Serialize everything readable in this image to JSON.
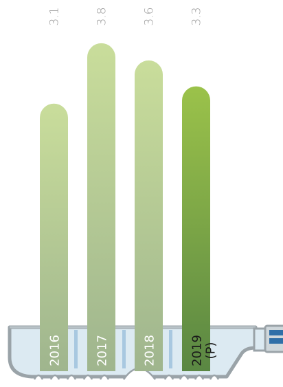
{
  "chart_data": {
    "type": "bar",
    "categories": [
      "2016",
      "2017",
      "2018",
      "2019"
    ],
    "category_suffixes": [
      "",
      "",
      "",
      "(P)"
    ],
    "values": [
      3.1,
      3.8,
      3.6,
      3.3
    ],
    "value_labels": [
      "3.1",
      "3.8",
      "3.6",
      "3.3"
    ],
    "title": "",
    "xlabel": "",
    "ylabel": "",
    "ylim": [
      0,
      3.8
    ],
    "grid": false,
    "legend": "none"
  },
  "colors": {
    "bar_light_top": "#c9dd9b",
    "bar_light_bottom": "#9fb58e",
    "bar_highlight_top": "#9bc24a",
    "bar_highlight_bottom": "#5a8743",
    "value_label": "#9a9a9a",
    "category_label_light": "#ffffff",
    "category_label_highlight": "#1a1a1a",
    "container_fill": "#dceaf2",
    "container_stroke": "#9aa3a8",
    "container_accent": "#2f6fa8"
  },
  "icons": {
    "container": "test-tube-rack-icon",
    "cap": "cap-icon"
  }
}
